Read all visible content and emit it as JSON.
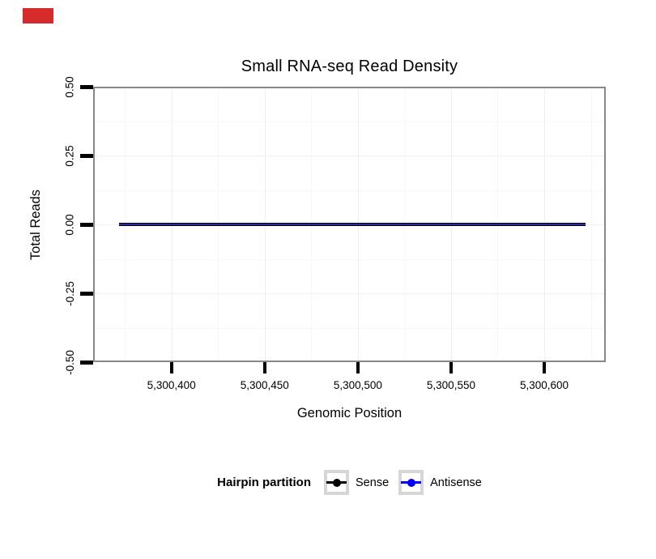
{
  "marker": {
    "color": "#d62b2b"
  },
  "colors": {
    "panel_border": "#888888",
    "grid_major": "#efefef",
    "grid_minor": "#f7f7f7",
    "tick": "#000000",
    "line_edge": "#000000",
    "line_core": "#2a2a9e",
    "legend_key_border": "#d6d6d6"
  },
  "chart_data": {
    "type": "line",
    "title": "Small RNA-seq Read Density",
    "xlabel": "Genomic Position",
    "ylabel": "Total Reads",
    "x_tick_values": [
      5300400,
      5300450,
      5300500,
      5300550,
      5300600
    ],
    "x_ticks": [
      "5,300,400",
      "5,300,450",
      "5,300,500",
      "5,300,550",
      "5,300,600"
    ],
    "y_tick_values": [
      0.5,
      0.25,
      0.0,
      -0.25,
      -0.5
    ],
    "y_ticks": [
      "0.50",
      "0.25",
      "0.00",
      "-0.25",
      "-0.50"
    ],
    "xlim": [
      5300358,
      5300633
    ],
    "ylim": [
      -0.5,
      0.5
    ],
    "grid": "on",
    "legend_position": "bottom",
    "legend_title": "Hairpin partition",
    "series": [
      {
        "name": "Sense",
        "color": "#000000",
        "x_start": 5300372,
        "x_end": 5300622,
        "value": 0.0
      },
      {
        "name": "Antisense",
        "color": "#0000ff",
        "x_start": 5300372,
        "x_end": 5300622,
        "value": 0.0
      }
    ]
  },
  "legend": {
    "title": "Hairpin partition",
    "items": [
      {
        "label": "Sense",
        "color": "#000000"
      },
      {
        "label": "Antisense",
        "color": "#0000ff"
      }
    ]
  }
}
